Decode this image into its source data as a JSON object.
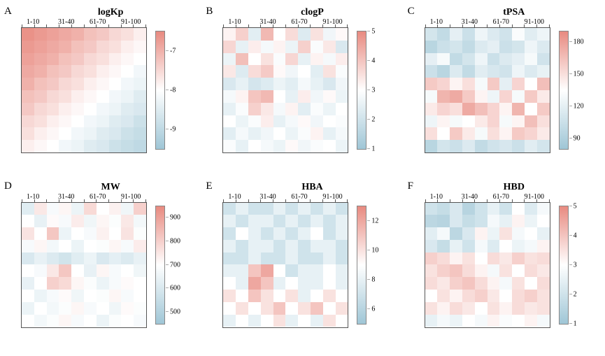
{
  "global": {
    "x_labels": [
      "1-10",
      "31-40",
      "61-70",
      "91-100"
    ],
    "hm_cols": 10,
    "hm_rows": 10,
    "color_low": "#9fc6d6",
    "color_mid": "#ffffff",
    "color_high": "#e88a80",
    "font_family": "Times New Roman",
    "title_fontsize": 14,
    "label_fontsize": 10,
    "letter_fontsize": 15,
    "background": "#ffffff"
  },
  "panels": [
    {
      "letter": "A",
      "title": "logKp",
      "cb_min": -9.5,
      "cb_max": -6.5,
      "cb_ticks": [
        -7,
        -8,
        -9
      ],
      "data": [
        [
          -6.6,
          -6.7,
          -6.8,
          -6.9,
          -7.0,
          -7.2,
          -7.3,
          -7.5,
          -7.6,
          -7.8
        ],
        [
          -6.7,
          -6.8,
          -6.9,
          -7.0,
          -7.2,
          -7.3,
          -7.5,
          -7.6,
          -7.8,
          -7.9
        ],
        [
          -6.8,
          -6.9,
          -7.0,
          -7.2,
          -7.3,
          -7.5,
          -7.6,
          -7.8,
          -7.9,
          -8.0
        ],
        [
          -6.9,
          -7.0,
          -7.2,
          -7.3,
          -7.5,
          -7.6,
          -7.8,
          -7.9,
          -8.0,
          -8.2
        ],
        [
          -7.0,
          -7.2,
          -7.3,
          -7.5,
          -7.6,
          -7.8,
          -7.9,
          -8.0,
          -8.2,
          -8.3
        ],
        [
          -7.2,
          -7.3,
          -7.5,
          -7.6,
          -7.8,
          -7.9,
          -8.0,
          -8.2,
          -8.3,
          -8.5
        ],
        [
          -7.3,
          -7.5,
          -7.6,
          -7.8,
          -7.9,
          -8.0,
          -8.2,
          -8.3,
          -8.5,
          -8.6
        ],
        [
          -7.5,
          -7.6,
          -7.8,
          -7.9,
          -8.0,
          -8.2,
          -8.3,
          -8.5,
          -8.6,
          -8.8
        ],
        [
          -7.6,
          -7.8,
          -7.9,
          -8.0,
          -8.2,
          -8.3,
          -8.5,
          -8.6,
          -8.8,
          -8.9
        ],
        [
          -7.8,
          -7.9,
          -8.0,
          -8.2,
          -8.3,
          -8.5,
          -8.6,
          -8.8,
          -8.9,
          -9.0
        ]
      ]
    },
    {
      "letter": "B",
      "title": "clogP",
      "cb_min": 1,
      "cb_max": 5,
      "cb_ticks": [
        5,
        4,
        3,
        2,
        1
      ],
      "data": [
        [
          3.2,
          3.8,
          2.4,
          4.2,
          3.0,
          3.6,
          2.3,
          3.5,
          2.7,
          3.1
        ],
        [
          3.7,
          2.5,
          3.3,
          2.8,
          3.2,
          2.6,
          3.8,
          2.9,
          3.4,
          2.2
        ],
        [
          2.6,
          4.1,
          3.0,
          3.5,
          2.9,
          3.7,
          2.5,
          3.2,
          2.8,
          3.3
        ],
        [
          3.4,
          2.3,
          3.6,
          3.9,
          3.1,
          2.7,
          3.0,
          2.4,
          3.5,
          2.9
        ],
        [
          2.2,
          2.5,
          2.1,
          2.3,
          2.6,
          2.4,
          2.8,
          2.5,
          2.2,
          2.7
        ],
        [
          2.8,
          3.2,
          4.0,
          4.2,
          3.0,
          2.5,
          3.3,
          2.7,
          3.1,
          2.6
        ],
        [
          2.5,
          2.9,
          3.8,
          3.4,
          2.8,
          3.2,
          2.4,
          2.9,
          2.6,
          3.0
        ],
        [
          3.0,
          2.6,
          2.9,
          3.3,
          2.5,
          2.8,
          3.1,
          2.7,
          3.0,
          2.9
        ],
        [
          2.4,
          2.8,
          2.5,
          2.7,
          3.0,
          2.6,
          2.9,
          3.2,
          2.5,
          2.8
        ],
        [
          2.9,
          2.5,
          3.0,
          2.8,
          2.6,
          3.1,
          2.7,
          2.9,
          3.0,
          2.6
        ]
      ]
    },
    {
      "letter": "C",
      "title": "tPSA",
      "cb_min": 80,
      "cb_max": 190,
      "cb_ticks": [
        180,
        150,
        120,
        90
      ],
      "data": [
        [
          110,
          100,
          120,
          105,
          125,
          115,
          108,
          132,
          118,
          125
        ],
        [
          95,
          105,
          110,
          100,
          115,
          120,
          105,
          110,
          125,
          115
        ],
        [
          120,
          130,
          100,
          110,
          125,
          105,
          115,
          120,
          130,
          108
        ],
        [
          105,
          95,
          115,
          100,
          118,
          112,
          108,
          125,
          115,
          122
        ],
        [
          160,
          155,
          140,
          150,
          130,
          160,
          120,
          155,
          135,
          165
        ],
        [
          130,
          170,
          175,
          160,
          140,
          125,
          155,
          130,
          160,
          145
        ],
        [
          145,
          155,
          150,
          175,
          165,
          155,
          140,
          170,
          135,
          160
        ],
        [
          125,
          140,
          130,
          135,
          145,
          155,
          130,
          140,
          165,
          150
        ],
        [
          150,
          135,
          160,
          145,
          130,
          150,
          140,
          160,
          155,
          145
        ],
        [
          95,
          110,
          105,
          115,
          100,
          108,
          112,
          105,
          118,
          110
        ]
      ]
    },
    {
      "letter": "D",
      "title": "MW",
      "cb_min": 450,
      "cb_max": 950,
      "cb_ticks": [
        900,
        800,
        700,
        600,
        500
      ],
      "data": [
        [
          620,
          750,
          680,
          720,
          650,
          780,
          700,
          730,
          660,
          800
        ],
        [
          700,
          640,
          710,
          680,
          740,
          660,
          720,
          690,
          750,
          670
        ],
        [
          760,
          700,
          820,
          650,
          700,
          680,
          730,
          700,
          760,
          690
        ],
        [
          680,
          720,
          670,
          700,
          650,
          700,
          690,
          720,
          680,
          740
        ],
        [
          600,
          640,
          610,
          580,
          620,
          650,
          600,
          630,
          610,
          640
        ],
        [
          700,
          680,
          750,
          820,
          700,
          640,
          720,
          680,
          700,
          660
        ],
        [
          640,
          700,
          800,
          780,
          720,
          690,
          650,
          680,
          710,
          700
        ],
        [
          700,
          650,
          680,
          710,
          660,
          700,
          690,
          720,
          680,
          700
        ],
        [
          650,
          700,
          670,
          690,
          720,
          680,
          700,
          660,
          710,
          690
        ],
        [
          700,
          670,
          690,
          720,
          680,
          700,
          650,
          690,
          700,
          680
        ]
      ]
    },
    {
      "letter": "E",
      "title": "HBA",
      "cb_min": 5,
      "cb_max": 13,
      "cb_ticks": [
        12,
        10,
        8,
        6
      ],
      "data": [
        [
          7,
          8,
          7,
          7,
          8,
          7,
          8,
          7,
          8,
          7
        ],
        [
          8,
          7,
          8,
          8,
          7,
          8,
          7,
          8,
          7,
          8
        ],
        [
          7,
          9,
          8,
          7,
          8,
          7,
          8,
          9,
          7,
          8
        ],
        [
          8,
          7,
          8,
          8,
          7,
          8,
          7,
          8,
          8,
          7
        ],
        [
          7,
          7,
          8,
          7,
          7,
          8,
          7,
          7,
          8,
          7
        ],
        [
          8,
          8,
          11,
          12,
          9,
          7,
          8,
          8,
          9,
          8
        ],
        [
          9,
          8,
          12,
          11,
          8,
          9,
          8,
          8,
          9,
          8
        ],
        [
          10,
          9,
          11,
          10,
          9,
          10,
          8,
          9,
          10,
          9
        ],
        [
          9,
          10,
          9,
          10,
          11,
          9,
          10,
          11,
          9,
          10
        ],
        [
          8,
          9,
          8,
          9,
          10,
          8,
          9,
          8,
          10,
          9
        ]
      ]
    },
    {
      "letter": "F",
      "title": "HBD",
      "cb_min": 1,
      "cb_max": 5,
      "cb_ticks": [
        5,
        4,
        3,
        2,
        1
      ],
      "data": [
        [
          2.0,
          1.8,
          2.2,
          1.5,
          2.0,
          2.5,
          2.0,
          3.0,
          2.3,
          2.8
        ],
        [
          1.6,
          1.5,
          2.2,
          1.8,
          2.0,
          2.8,
          2.5,
          3.2,
          2.6,
          3.0
        ],
        [
          2.4,
          2.8,
          1.6,
          2.2,
          3.2,
          2.6,
          3.5,
          2.8,
          3.0,
          2.5
        ],
        [
          2.2,
          1.8,
          2.5,
          2.0,
          2.8,
          2.3,
          3.0,
          2.6,
          2.8,
          3.2
        ],
        [
          3.8,
          3.6,
          3.2,
          3.5,
          3.0,
          3.6,
          3.4,
          3.8,
          3.5,
          3.6
        ],
        [
          3.5,
          3.8,
          4.0,
          3.6,
          3.2,
          2.8,
          3.5,
          3.0,
          3.6,
          3.4
        ],
        [
          3.6,
          3.4,
          3.8,
          4.0,
          3.6,
          3.2,
          2.8,
          3.5,
          3.0,
          3.6
        ],
        [
          3.0,
          3.5,
          3.2,
          3.6,
          3.8,
          3.4,
          3.0,
          3.6,
          3.8,
          3.5
        ],
        [
          3.5,
          3.2,
          3.6,
          3.4,
          3.0,
          3.5,
          3.2,
          3.6,
          3.4,
          3.5
        ],
        [
          2.5,
          2.8,
          2.6,
          3.0,
          2.8,
          3.2,
          2.9,
          3.0,
          3.2,
          2.8
        ]
      ]
    }
  ]
}
